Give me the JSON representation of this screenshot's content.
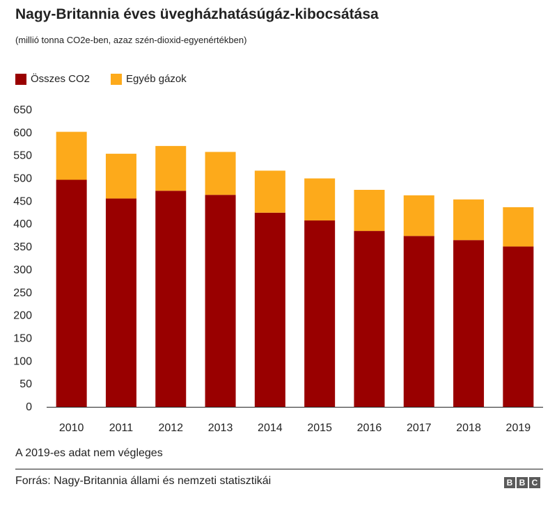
{
  "title": "Nagy-Britannia éves üvegházhatásúgáz-kibocsátása",
  "subtitle": "(millió tonna CO2e-ben, azaz szén-dioxid-egyenértékben)",
  "footnote": "A 2019-es adat nem végleges",
  "source": "Forrás: Nagy-Britannia állami és nemzeti statisztikái",
  "logo": [
    "B",
    "B",
    "C"
  ],
  "colors": {
    "co2": "#990000",
    "other": "#FDAA1B",
    "axis": "#222222",
    "grid": "#cccccc"
  },
  "chart_data": {
    "type": "bar",
    "stacked": true,
    "categories": [
      "2010",
      "2011",
      "2012",
      "2013",
      "2014",
      "2015",
      "2016",
      "2017",
      "2018",
      "2019"
    ],
    "series": [
      {
        "name": "Összes CO2",
        "color": "#990000",
        "values": [
          497,
          456,
          473,
          464,
          425,
          408,
          385,
          374,
          365,
          351
        ]
      },
      {
        "name": "Egyéb gázok",
        "color": "#FDAA1B",
        "values": [
          105,
          98,
          98,
          94,
          92,
          92,
          90,
          89,
          89,
          86
        ]
      }
    ],
    "ylim": [
      0,
      650
    ],
    "yticks": [
      "650",
      "600",
      "550",
      "500",
      "450",
      "400",
      "350",
      "300",
      "250",
      "200",
      "150",
      "100",
      "50",
      "0"
    ],
    "grid": false,
    "legend_position": "top-left"
  }
}
